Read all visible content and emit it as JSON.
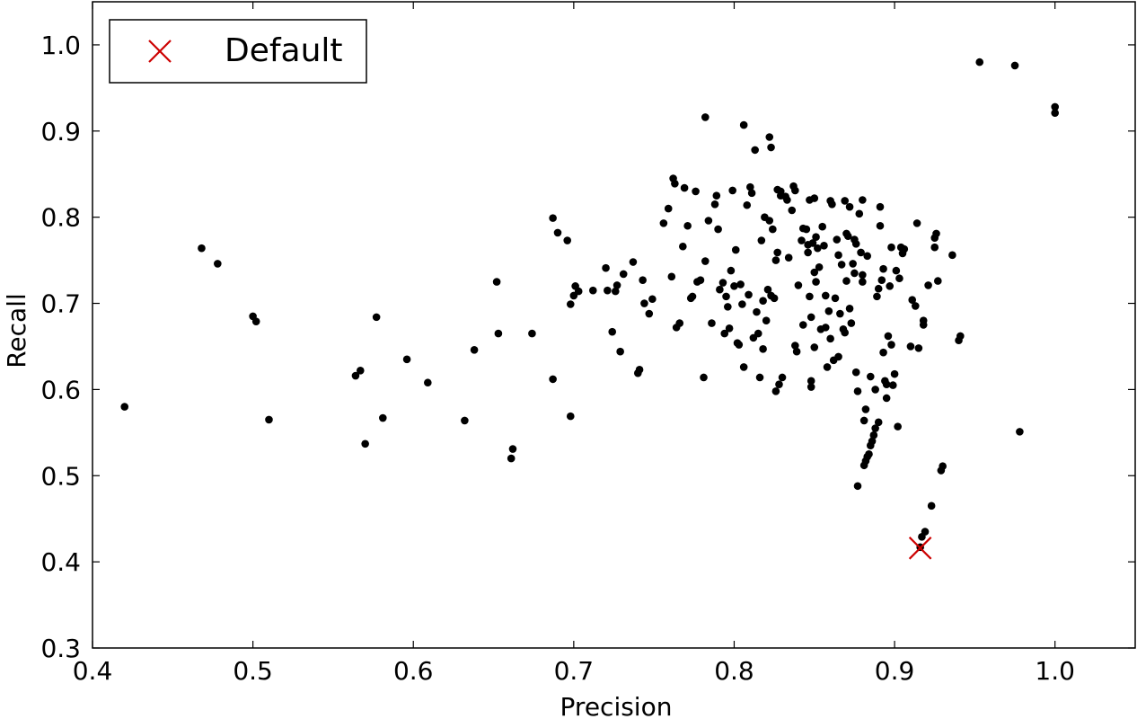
{
  "chart_data": {
    "type": "scatter",
    "title": "",
    "xlabel": "Precision",
    "ylabel": "Recall",
    "xlim": [
      0.4,
      1.05
    ],
    "ylim": [
      0.3,
      1.05
    ],
    "x_ticks": [
      0.4,
      0.5,
      0.6,
      0.7,
      0.8,
      0.9,
      1.0
    ],
    "x_tick_labels": [
      "0.4",
      "0.5",
      "0.6",
      "0.7",
      "0.8",
      "0.9",
      "1.0"
    ],
    "y_ticks": [
      0.3,
      0.4,
      0.5,
      0.6,
      0.7,
      0.8,
      0.9,
      1.0
    ],
    "y_tick_labels": [
      "0.3",
      "0.4",
      "0.5",
      "0.6",
      "0.7",
      "0.8",
      "0.9",
      "1.0"
    ],
    "grid": false,
    "legend_position": "top-left",
    "colors": {
      "points": "#000000",
      "default_marker": "#cc0000"
    },
    "series": [
      {
        "marker": "dot",
        "points": [
          [
            0.42,
            0.58
          ],
          [
            0.468,
            0.764
          ],
          [
            0.478,
            0.746
          ],
          [
            0.5,
            0.685
          ],
          [
            0.502,
            0.679
          ],
          [
            0.51,
            0.565
          ],
          [
            0.564,
            0.616
          ],
          [
            0.567,
            0.622
          ],
          [
            0.57,
            0.537
          ],
          [
            0.577,
            0.684
          ],
          [
            0.581,
            0.567
          ],
          [
            0.596,
            0.635
          ],
          [
            0.609,
            0.608
          ],
          [
            0.632,
            0.564
          ],
          [
            0.638,
            0.646
          ],
          [
            0.652,
            0.725
          ],
          [
            0.653,
            0.665
          ],
          [
            0.661,
            0.52
          ],
          [
            0.662,
            0.531
          ],
          [
            0.674,
            0.665
          ],
          [
            0.687,
            0.612
          ],
          [
            0.687,
            0.799
          ],
          [
            0.69,
            0.782
          ],
          [
            0.696,
            0.773
          ],
          [
            0.698,
            0.569
          ],
          [
            0.698,
            0.699
          ],
          [
            0.7,
            0.709
          ],
          [
            0.701,
            0.72
          ],
          [
            0.703,
            0.714
          ],
          [
            0.712,
            0.715
          ],
          [
            0.72,
            0.741
          ],
          [
            0.721,
            0.715
          ],
          [
            0.724,
            0.667
          ],
          [
            0.726,
            0.714
          ],
          [
            0.727,
            0.721
          ],
          [
            0.729,
            0.644
          ],
          [
            0.731,
            0.734
          ],
          [
            0.737,
            0.748
          ],
          [
            0.74,
            0.619
          ],
          [
            0.741,
            0.623
          ],
          [
            0.743,
            0.727
          ],
          [
            0.744,
            0.7
          ],
          [
            0.747,
            0.688
          ],
          [
            0.749,
            0.705
          ],
          [
            0.756,
            0.793
          ],
          [
            0.759,
            0.81
          ],
          [
            0.761,
            0.731
          ],
          [
            0.762,
            0.845
          ],
          [
            0.763,
            0.839
          ],
          [
            0.764,
            0.672
          ],
          [
            0.766,
            0.677
          ],
          [
            0.768,
            0.766
          ],
          [
            0.769,
            0.834
          ],
          [
            0.771,
            0.79
          ],
          [
            0.773,
            0.706
          ],
          [
            0.774,
            0.708
          ],
          [
            0.776,
            0.83
          ],
          [
            0.777,
            0.725
          ],
          [
            0.779,
            0.727
          ],
          [
            0.781,
            0.614
          ],
          [
            0.782,
            0.916
          ],
          [
            0.782,
            0.749
          ],
          [
            0.784,
            0.796
          ],
          [
            0.786,
            0.677
          ],
          [
            0.788,
            0.815
          ],
          [
            0.789,
            0.825
          ],
          [
            0.79,
            0.786
          ],
          [
            0.791,
            0.716
          ],
          [
            0.793,
            0.724
          ],
          [
            0.794,
            0.665
          ],
          [
            0.795,
            0.708
          ],
          [
            0.796,
            0.696
          ],
          [
            0.797,
            0.671
          ],
          [
            0.798,
            0.738
          ],
          [
            0.799,
            0.831
          ],
          [
            0.8,
            0.72
          ],
          [
            0.801,
            0.762
          ],
          [
            0.802,
            0.654
          ],
          [
            0.803,
            0.652
          ],
          [
            0.804,
            0.722
          ],
          [
            0.805,
            0.699
          ],
          [
            0.806,
            0.907
          ],
          [
            0.806,
            0.626
          ],
          [
            0.808,
            0.814
          ],
          [
            0.809,
            0.71
          ],
          [
            0.81,
            0.835
          ],
          [
            0.811,
            0.828
          ],
          [
            0.812,
            0.66
          ],
          [
            0.813,
            0.878
          ],
          [
            0.814,
            0.69
          ],
          [
            0.815,
            0.665
          ],
          [
            0.816,
            0.614
          ],
          [
            0.817,
            0.773
          ],
          [
            0.818,
            0.703
          ],
          [
            0.818,
            0.647
          ],
          [
            0.819,
            0.8
          ],
          [
            0.82,
            0.68
          ],
          [
            0.821,
            0.716
          ],
          [
            0.822,
            0.893
          ],
          [
            0.822,
            0.796
          ],
          [
            0.823,
            0.881
          ],
          [
            0.823,
            0.709
          ],
          [
            0.824,
            0.786
          ],
          [
            0.825,
            0.706
          ],
          [
            0.826,
            0.75
          ],
          [
            0.826,
            0.598
          ],
          [
            0.827,
            0.832
          ],
          [
            0.827,
            0.759
          ],
          [
            0.828,
            0.606
          ],
          [
            0.829,
            0.83
          ],
          [
            0.829,
            0.825
          ],
          [
            0.83,
            0.614
          ],
          [
            0.832,
            0.824
          ],
          [
            0.833,
            0.82
          ],
          [
            0.834,
            0.753
          ],
          [
            0.836,
            0.808
          ],
          [
            0.837,
            0.836
          ],
          [
            0.838,
            0.831
          ],
          [
            0.838,
            0.651
          ],
          [
            0.839,
            0.644
          ],
          [
            0.84,
            0.721
          ],
          [
            0.842,
            0.773
          ],
          [
            0.843,
            0.787
          ],
          [
            0.843,
            0.675
          ],
          [
            0.845,
            0.786
          ],
          [
            0.846,
            0.768
          ],
          [
            0.846,
            0.759
          ],
          [
            0.847,
            0.82
          ],
          [
            0.847,
            0.708
          ],
          [
            0.848,
            0.684
          ],
          [
            0.848,
            0.61
          ],
          [
            0.848,
            0.603
          ],
          [
            0.849,
            0.77
          ],
          [
            0.85,
            0.822
          ],
          [
            0.85,
            0.736
          ],
          [
            0.85,
            0.649
          ],
          [
            0.851,
            0.777
          ],
          [
            0.851,
            0.725
          ],
          [
            0.852,
            0.764
          ],
          [
            0.853,
            0.742
          ],
          [
            0.854,
            0.67
          ],
          [
            0.855,
            0.789
          ],
          [
            0.856,
            0.767
          ],
          [
            0.857,
            0.709
          ],
          [
            0.857,
            0.672
          ],
          [
            0.858,
            0.626
          ],
          [
            0.859,
            0.691
          ],
          [
            0.86,
            0.819
          ],
          [
            0.86,
            0.659
          ],
          [
            0.861,
            0.815
          ],
          [
            0.862,
            0.634
          ],
          [
            0.863,
            0.706
          ],
          [
            0.864,
            0.774
          ],
          [
            0.865,
            0.756
          ],
          [
            0.865,
            0.638
          ],
          [
            0.866,
            0.688
          ],
          [
            0.867,
            0.745
          ],
          [
            0.868,
            0.67
          ],
          [
            0.869,
            0.819
          ],
          [
            0.869,
            0.666
          ],
          [
            0.87,
            0.781
          ],
          [
            0.87,
            0.726
          ],
          [
            0.871,
            0.778
          ],
          [
            0.872,
            0.812
          ],
          [
            0.872,
            0.694
          ],
          [
            0.873,
            0.677
          ],
          [
            0.874,
            0.746
          ],
          [
            0.875,
            0.735
          ],
          [
            0.875,
            0.774
          ],
          [
            0.876,
            0.769
          ],
          [
            0.876,
            0.62
          ],
          [
            0.877,
            0.598
          ],
          [
            0.877,
            0.488
          ],
          [
            0.878,
            0.804
          ],
          [
            0.879,
            0.759
          ],
          [
            0.88,
            0.725
          ],
          [
            0.88,
            0.733
          ],
          [
            0.88,
            0.82
          ],
          [
            0.881,
            0.564
          ],
          [
            0.881,
            0.512
          ],
          [
            0.882,
            0.517
          ],
          [
            0.882,
            0.577
          ],
          [
            0.883,
            0.522
          ],
          [
            0.883,
            0.755
          ],
          [
            0.884,
            0.525
          ],
          [
            0.885,
            0.535
          ],
          [
            0.885,
            0.615
          ],
          [
            0.886,
            0.54
          ],
          [
            0.887,
            0.547
          ],
          [
            0.888,
            0.555
          ],
          [
            0.888,
            0.6
          ],
          [
            0.889,
            0.708
          ],
          [
            0.89,
            0.562
          ],
          [
            0.89,
            0.717
          ],
          [
            0.891,
            0.79
          ],
          [
            0.891,
            0.812
          ],
          [
            0.892,
            0.727
          ],
          [
            0.893,
            0.74
          ],
          [
            0.893,
            0.643
          ],
          [
            0.894,
            0.61
          ],
          [
            0.895,
            0.606
          ],
          [
            0.895,
            0.59
          ],
          [
            0.896,
            0.662
          ],
          [
            0.897,
            0.72
          ],
          [
            0.898,
            0.765
          ],
          [
            0.898,
            0.652
          ],
          [
            0.899,
            0.605
          ],
          [
            0.9,
            0.618
          ],
          [
            0.901,
            0.738
          ],
          [
            0.902,
            0.557
          ],
          [
            0.903,
            0.729
          ],
          [
            0.904,
            0.765
          ],
          [
            0.905,
            0.758
          ],
          [
            0.906,
            0.763
          ],
          [
            0.91,
            0.65
          ],
          [
            0.911,
            0.704
          ],
          [
            0.913,
            0.697
          ],
          [
            0.914,
            0.793
          ],
          [
            0.915,
            0.648
          ],
          [
            0.916,
            0.417
          ],
          [
            0.917,
            0.429
          ],
          [
            0.918,
            0.675
          ],
          [
            0.918,
            0.68
          ],
          [
            0.919,
            0.435
          ],
          [
            0.921,
            0.721
          ],
          [
            0.923,
            0.465
          ],
          [
            0.925,
            0.776
          ],
          [
            0.925,
            0.765
          ],
          [
            0.926,
            0.781
          ],
          [
            0.927,
            0.726
          ],
          [
            0.929,
            0.506
          ],
          [
            0.93,
            0.511
          ],
          [
            0.936,
            0.756
          ],
          [
            0.94,
            0.657
          ],
          [
            0.941,
            0.662
          ],
          [
            0.953,
            0.98
          ],
          [
            0.975,
            0.976
          ],
          [
            0.978,
            0.551
          ],
          [
            1.0,
            0.928
          ],
          [
            1.0,
            0.921
          ]
        ]
      },
      {
        "name": "Default",
        "marker": "x",
        "points": [
          [
            0.916,
            0.416
          ]
        ]
      }
    ]
  }
}
